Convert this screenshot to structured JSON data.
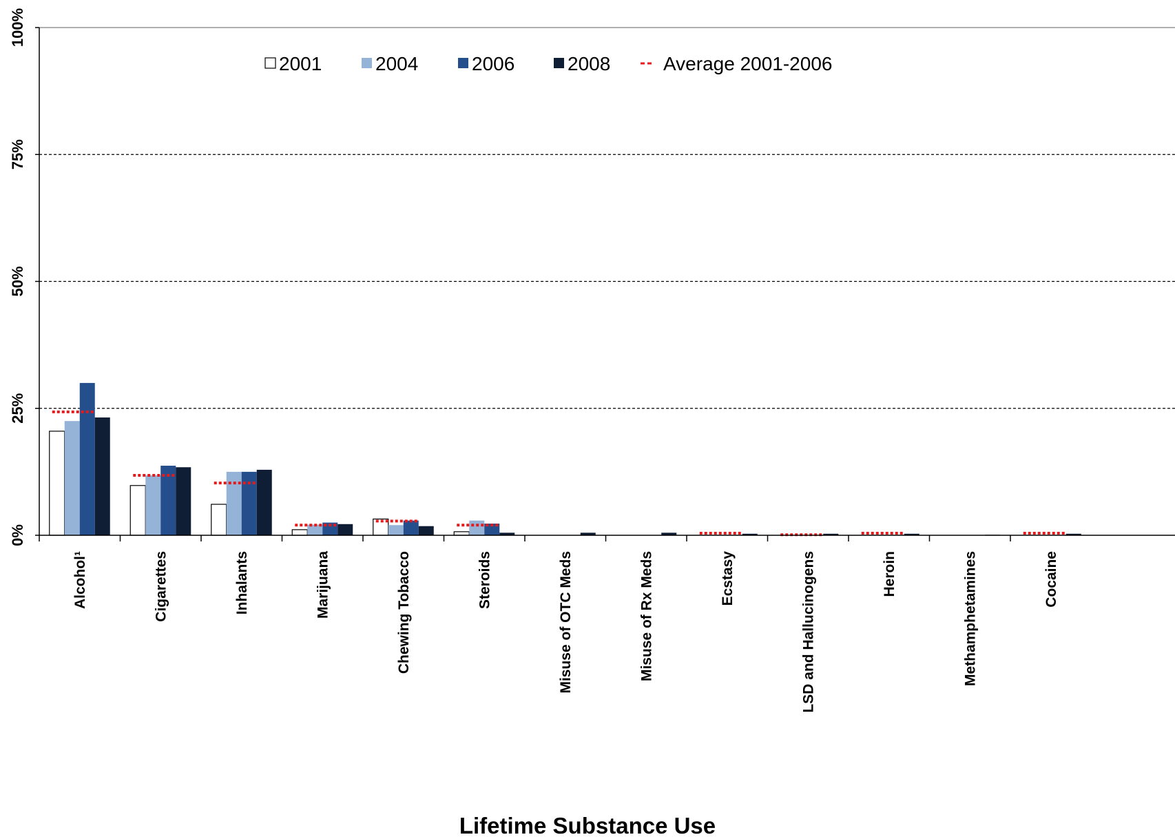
{
  "chart_data": {
    "type": "bar",
    "xlabel": "Lifetime Substance Use",
    "ylabel": "",
    "ylim": [
      0,
      100
    ],
    "y_ticks": [
      "0%",
      "25%",
      "50%",
      "75%",
      "100%"
    ],
    "y_tick_values": [
      0,
      25,
      50,
      75,
      100
    ],
    "grid": "horizontal dashed",
    "legend_position": "top-center",
    "categories": [
      "Alcohol¹",
      "Cigarettes",
      "Inhalants",
      "Marijuana",
      "Chewing Tobacco",
      "Steroids",
      "Misuse of OTC Meds",
      "Misuse of Rx Meds",
      "Ecstasy",
      "LSD and Hallucinogens",
      "Heroin",
      "Methamphetamines",
      "Cocaine"
    ],
    "series": [
      {
        "name": "2001",
        "color": "#ffffff",
        "values": [
          20.5,
          9.8,
          6.1,
          1.1,
          3.2,
          0.7,
          null,
          null,
          null,
          null,
          null,
          null,
          null
        ]
      },
      {
        "name": "2004",
        "color": "#95b3d7",
        "values": [
          22.5,
          11.8,
          12.5,
          2.1,
          2.0,
          2.9,
          null,
          null,
          null,
          null,
          null,
          null,
          null
        ]
      },
      {
        "name": "2006",
        "color": "#254f8c",
        "values": [
          30.0,
          13.7,
          12.5,
          2.5,
          2.9,
          2.3,
          null,
          null,
          null,
          null,
          null,
          null,
          null
        ]
      },
      {
        "name": "2008",
        "color": "#0f1e35",
        "values": [
          23.2,
          13.4,
          12.9,
          2.2,
          1.8,
          0.5,
          0.5,
          0.5,
          0.3,
          0.3,
          0.3,
          0.1,
          0.3
        ]
      }
    ],
    "average": {
      "name": "Average 2001-2006",
      "color": "#e41a1c",
      "values": [
        24.3,
        11.8,
        10.3,
        2.0,
        2.8,
        2.0,
        null,
        null,
        0.4,
        0.1,
        0.4,
        null,
        0.4
      ]
    }
  }
}
